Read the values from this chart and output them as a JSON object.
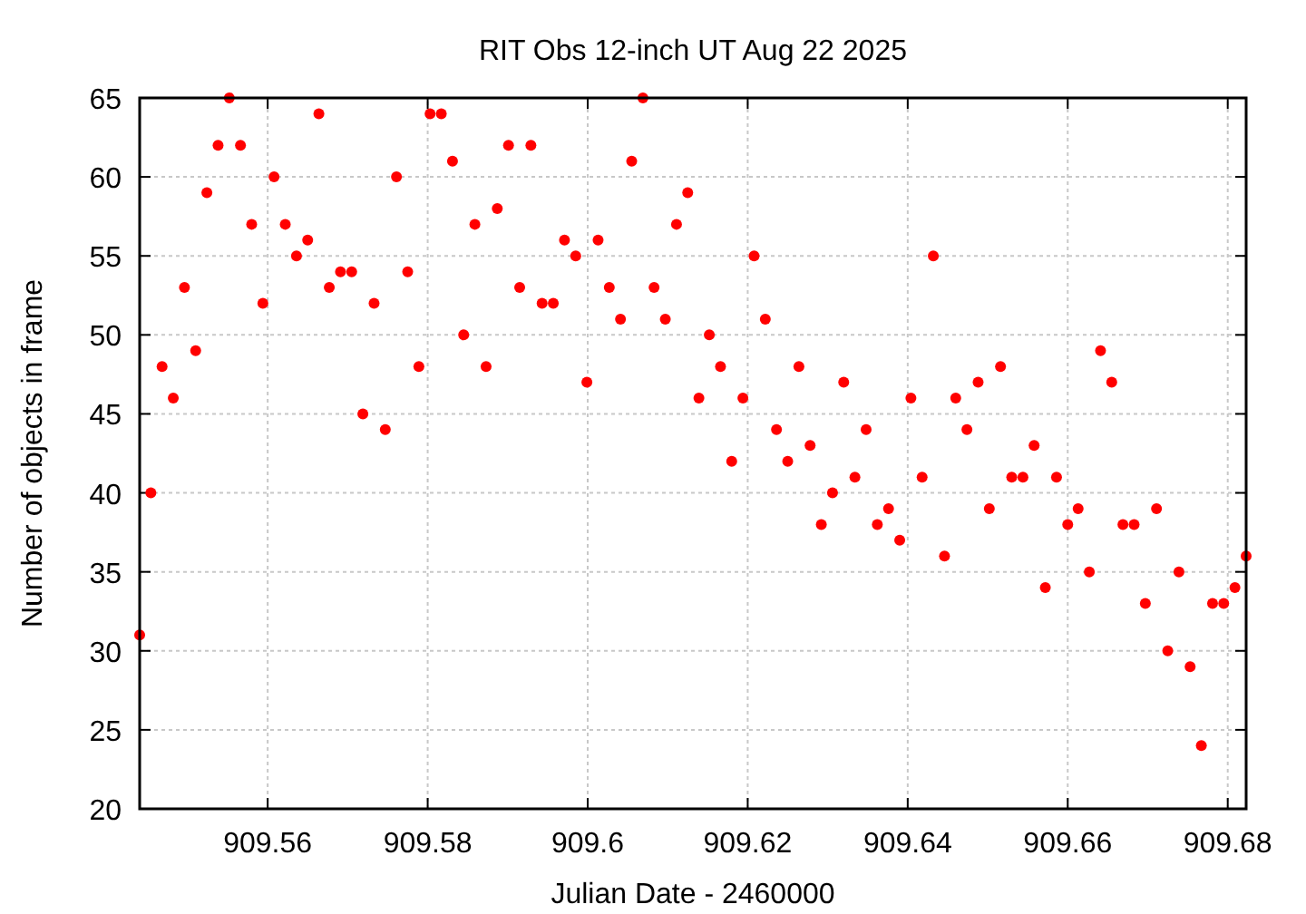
{
  "chart_data": {
    "type": "scatter",
    "title": "RIT Obs 12-inch UT Aug 22 2025",
    "xlabel": "Julian Date - 2460000",
    "ylabel": "Number of objects in frame",
    "x": [
      909.544,
      909.5454,
      909.5468,
      909.5482,
      909.5496,
      909.551,
      909.5524,
      909.5538,
      909.5552,
      909.5566,
      909.558,
      909.5594,
      909.5608,
      909.5622,
      909.5636,
      909.565,
      909.5664,
      909.5677,
      909.5691,
      909.5705,
      909.5719,
      909.5733,
      909.5747,
      909.5761,
      909.5775,
      909.5789,
      909.5803,
      909.5817,
      909.5831,
      909.5845,
      909.5859,
      909.5873,
      909.5887,
      909.5901,
      909.5915,
      909.5929,
      909.5943,
      909.5957,
      909.5971,
      909.5985,
      909.5999,
      909.6013,
      909.6027,
      909.6041,
      909.6055,
      909.6069,
      909.6083,
      909.6097,
      909.6111,
      909.6125,
      909.6139,
      909.6152,
      909.6166,
      909.618,
      909.6194,
      909.6208,
      909.6222,
      909.6236,
      909.625,
      909.6264,
      909.6278,
      909.6292,
      909.6306,
      909.632,
      909.6334,
      909.6348,
      909.6362,
      909.6376,
      909.639,
      909.6404,
      909.6418,
      909.6432,
      909.6446,
      909.646,
      909.6474,
      909.6488,
      909.6502,
      909.6516,
      909.653,
      909.6544,
      909.6558,
      909.6572,
      909.6586,
      909.66,
      909.6613,
      909.6627,
      909.6641,
      909.6655,
      909.6669,
      909.6683,
      909.6697,
      909.6711,
      909.6725,
      909.6739,
      909.6753,
      909.6767,
      909.6781,
      909.6795,
      909.6809,
      909.6823
    ],
    "series": [
      {
        "color": "#ff0000",
        "values": [
          31,
          40,
          48,
          46,
          53,
          49,
          59,
          62,
          65,
          62,
          57,
          52,
          60,
          57,
          55,
          56,
          64,
          53,
          54,
          54,
          45,
          52,
          44,
          60,
          54,
          48,
          64,
          64,
          61,
          50,
          57,
          48,
          58,
          62,
          53,
          62,
          52,
          52,
          56,
          55,
          47,
          56,
          53,
          51,
          61,
          65,
          53,
          51,
          57,
          59,
          46,
          50,
          48,
          42,
          46,
          55,
          51,
          44,
          42,
          48,
          43,
          38,
          40,
          47,
          41,
          44,
          38,
          39,
          37,
          46,
          41,
          55,
          36,
          46,
          44,
          47,
          39,
          48,
          41,
          41,
          43,
          34,
          41,
          38,
          39,
          35,
          49,
          47,
          38,
          38,
          33,
          39,
          30,
          35,
          29,
          24,
          33,
          33,
          34,
          36
        ]
      }
    ],
    "xlim": [
      909.544,
      909.6823
    ],
    "ylim": [
      20,
      65
    ],
    "xticks": [
      909.56,
      909.58,
      909.6,
      909.62,
      909.64,
      909.66,
      909.68
    ],
    "yticks": [
      20,
      25,
      30,
      35,
      40,
      45,
      50,
      55,
      60,
      65
    ],
    "grid": true,
    "marker": "circle"
  }
}
